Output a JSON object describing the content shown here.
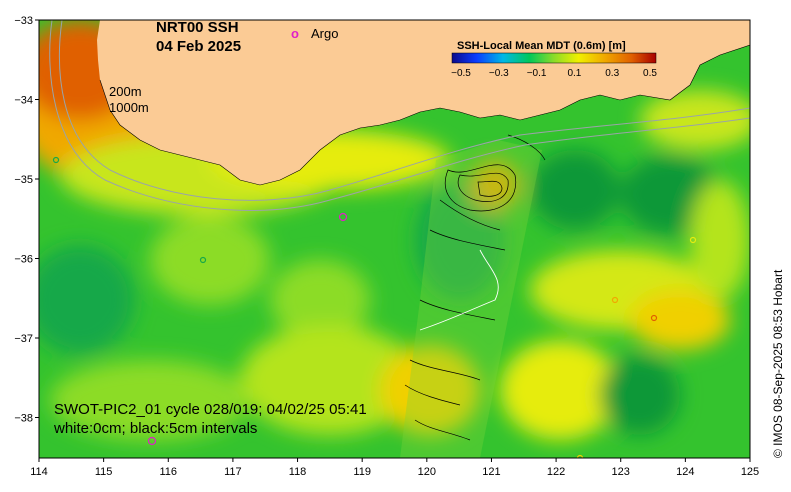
{
  "title_line1": "NRT00 SSH",
  "title_line2": "04 Feb 2025",
  "argo_marker": "o",
  "argo_label": "Argo",
  "depth_labels": [
    "200m",
    "1000m"
  ],
  "colorbar": {
    "title": "SSH-Local Mean MDT (0.6m) [m]",
    "ticks": [
      "−0.5",
      "−0.3",
      "−0.1",
      "0.1",
      "0.3",
      "0.5"
    ],
    "colors": [
      "#0a0a8c",
      "#0c3cff",
      "#00b8e6",
      "#00c85a",
      "#8cdc28",
      "#f0f000",
      "#f0a800",
      "#e06000",
      "#a80000"
    ]
  },
  "swot_line1": "SWOT-PIC2_01 cycle 028/019; 04/02/25 05:41",
  "swot_line2": "white:0cm; black:5cm intervals",
  "credit": "© IMOS 08-Sep-2025 08:53 Hobart",
  "x_ticks": [
    "114",
    "115",
    "116",
    "117",
    "118",
    "119",
    "120",
    "121",
    "122",
    "123",
    "124",
    "125"
  ],
  "y_ticks": [
    "−33",
    "−34",
    "−35",
    "−36",
    "−37",
    "−38"
  ],
  "colors": {
    "land": "#fbcb95",
    "sea_base": "#34c32e"
  }
}
